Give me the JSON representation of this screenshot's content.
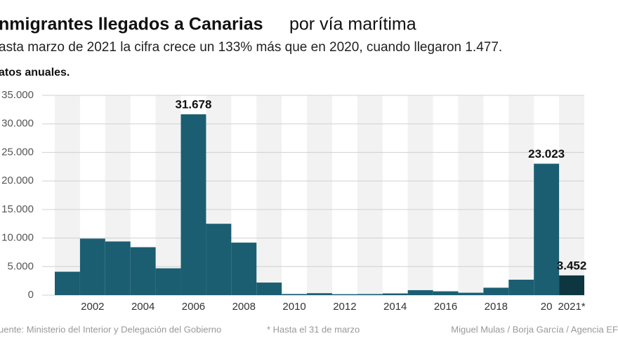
{
  "chart_data": {
    "type": "bar",
    "title_bold": "nmigrantes llegados a Canarias",
    "title_rest": "por vía marítima",
    "subtitle": "asta marzo de 2021 la cifra crece un 133% más que en 2020, cuando llegaron 1.477.",
    "axis_note": "atos anuales.",
    "source": "uente: Ministerio del Interior y Delegación del Gobierno",
    "footnote": "* Hasta el 31 de marzo",
    "credit": "Miguel Mulas / Borja García / Agencia EF",
    "categories": [
      null,
      "2002",
      null,
      "2004",
      null,
      "2006",
      null,
      "2008",
      null,
      "2010",
      null,
      "2012",
      null,
      "2014",
      null,
      "2016",
      null,
      "2018",
      null,
      "20",
      "2021*"
    ],
    "values": [
      4100,
      9900,
      9400,
      8400,
      4700,
      31678,
      12500,
      9200,
      2200,
      200,
      340,
      170,
      190,
      300,
      870,
      670,
      420,
      1300,
      2700,
      23023,
      3452
    ],
    "value_labels": [
      null,
      null,
      null,
      null,
      null,
      "31.678",
      null,
      null,
      null,
      null,
      null,
      null,
      null,
      null,
      null,
      null,
      null,
      null,
      null,
      "23.023",
      "3.452"
    ],
    "colors": [
      "#1b5e72",
      "#1b5e72",
      "#1b5e72",
      "#1b5e72",
      "#1b5e72",
      "#1b5e72",
      "#1b5e72",
      "#1b5e72",
      "#1b5e72",
      "#1b5e72",
      "#1b5e72",
      "#1b5e72",
      "#1b5e72",
      "#1b5e72",
      "#1b5e72",
      "#1b5e72",
      "#1b5e72",
      "#1b5e72",
      "#1b5e72",
      "#1b5e72",
      "#0e3640"
    ],
    "ylim": [
      0,
      35000
    ],
    "yticks": [
      0,
      {
        "value": 5000,
        "label": "5.000"
      },
      {
        "value": 10000,
        "label": "10.000"
      },
      {
        "value": 15000,
        "label": "15.000"
      },
      {
        "value": 20000,
        "label": "20.000"
      },
      {
        "value": 25000,
        "label": "25.000"
      },
      {
        "value": 30000,
        "label": "30.000"
      },
      {
        "value": 35000,
        "label": "35.000"
      }
    ],
    "grid": true
  }
}
